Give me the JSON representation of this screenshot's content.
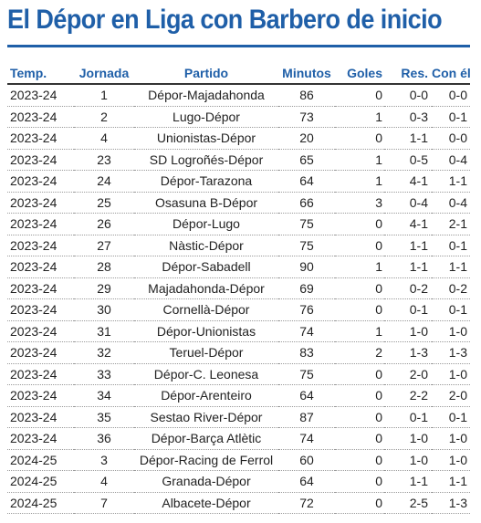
{
  "title": "El Dépor en Liga con Barbero de inicio",
  "table": {
    "headers": [
      "Temp.",
      "Jornada",
      "Partido",
      "Minutos",
      "Goles",
      "Res.",
      "Con él"
    ],
    "rows": [
      [
        "2023-24",
        "1",
        "Dépor-Majadahonda",
        "86",
        "0",
        "0-0",
        "0-0"
      ],
      [
        "2023-24",
        "2",
        "Lugo-Dépor",
        "73",
        "1",
        "0-3",
        "0-1"
      ],
      [
        "2023-24",
        "4",
        "Unionistas-Dépor",
        "20",
        "0",
        "1-1",
        "0-0"
      ],
      [
        "2023-24",
        "23",
        "SD Logroñés-Dépor",
        "65",
        "1",
        "0-5",
        "0-4"
      ],
      [
        "2023-24",
        "24",
        "Dépor-Tarazona",
        "64",
        "1",
        "4-1",
        "1-1"
      ],
      [
        "2023-24",
        "25",
        "Osasuna B-Dépor",
        "66",
        "3",
        "0-4",
        "0-4"
      ],
      [
        "2023-24",
        "26",
        "Dépor-Lugo",
        "75",
        "0",
        "4-1",
        "2-1"
      ],
      [
        "2023-24",
        "27",
        "Nàstic-Dépor",
        "75",
        "0",
        "1-1",
        "0-1"
      ],
      [
        "2023-24",
        "28",
        "Dépor-Sabadell",
        "90",
        "1",
        "1-1",
        "1-1"
      ],
      [
        "2023-24",
        "29",
        "Majadahonda-Dépor",
        "69",
        "0",
        "0-2",
        "0-2"
      ],
      [
        "2023-24",
        "30",
        "Cornellà-Dépor",
        "76",
        "0",
        "0-1",
        "0-1"
      ],
      [
        "2023-24",
        "31",
        "Dépor-Unionistas",
        "74",
        "1",
        "1-0",
        "1-0"
      ],
      [
        "2023-24",
        "32",
        "Teruel-Dépor",
        "83",
        "2",
        "1-3",
        "1-3"
      ],
      [
        "2023-24",
        "33",
        "Dépor-C. Leonesa",
        "75",
        "0",
        "2-0",
        "1-0"
      ],
      [
        "2023-24",
        "34",
        "Dépor-Arenteiro",
        "64",
        "0",
        "2-2",
        "2-0"
      ],
      [
        "2023-24",
        "35",
        "Sestao River-Dépor",
        "87",
        "0",
        "0-1",
        "0-1"
      ],
      [
        "2023-24",
        "36",
        "Dépor-Barça Atlètic",
        "74",
        "0",
        "1-0",
        "1-0"
      ],
      [
        "2024-25",
        "3",
        "Dépor-Racing de Ferrol",
        "60",
        "0",
        "1-0",
        "1-0"
      ],
      [
        "2024-25",
        "4",
        "Granada-Dépor",
        "64",
        "0",
        "1-1",
        "1-1"
      ],
      [
        "2024-25",
        "7",
        "Albacete-Dépor",
        "72",
        "0",
        "2-5",
        "1-3"
      ]
    ]
  },
  "colors": {
    "accent": "#1f5fa8",
    "text": "#222222"
  }
}
